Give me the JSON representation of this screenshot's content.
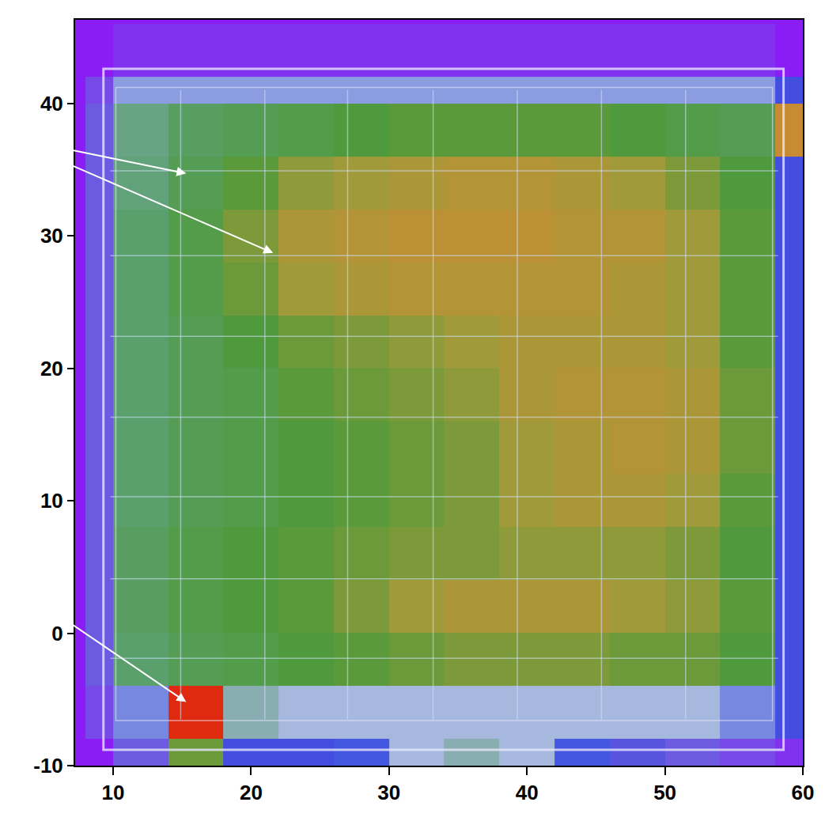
{
  "chart_data": {
    "type": "heatmap",
    "x": [
      8,
      10,
      14,
      18,
      22,
      26,
      30,
      34,
      38,
      42,
      46,
      50,
      54,
      58,
      60
    ],
    "y": [
      -10,
      -8,
      -4,
      0,
      4,
      8,
      12,
      16,
      20,
      24,
      28,
      32,
      36,
      40,
      42,
      46
    ],
    "cells": [
      [
        0.05,
        0.2,
        0.7,
        0.3,
        0.3,
        0.35,
        0.45,
        0.5,
        0.45,
        0.35,
        0.25,
        0.2,
        0.15,
        0.1
      ],
      [
        0.15,
        0.4,
        1.0,
        0.5,
        0.45,
        0.45,
        0.45,
        0.45,
        0.45,
        0.45,
        0.45,
        0.45,
        0.4,
        0.3
      ],
      [
        0.2,
        0.58,
        0.62,
        0.64,
        0.66,
        0.68,
        0.7,
        0.72,
        0.72,
        0.72,
        0.7,
        0.7,
        0.66,
        0.3
      ],
      [
        0.2,
        0.6,
        0.64,
        0.66,
        0.68,
        0.72,
        0.76,
        0.78,
        0.78,
        0.78,
        0.76,
        0.74,
        0.68,
        0.3
      ],
      [
        0.2,
        0.6,
        0.64,
        0.66,
        0.68,
        0.7,
        0.72,
        0.72,
        0.74,
        0.74,
        0.74,
        0.72,
        0.66,
        0.3
      ],
      [
        0.2,
        0.58,
        0.62,
        0.64,
        0.66,
        0.68,
        0.7,
        0.72,
        0.76,
        0.78,
        0.78,
        0.76,
        0.68,
        0.3
      ],
      [
        0.2,
        0.58,
        0.62,
        0.64,
        0.66,
        0.68,
        0.7,
        0.72,
        0.76,
        0.78,
        0.8,
        0.78,
        0.7,
        0.3
      ],
      [
        0.2,
        0.58,
        0.62,
        0.64,
        0.68,
        0.7,
        0.72,
        0.74,
        0.78,
        0.8,
        0.8,
        0.78,
        0.7,
        0.3
      ],
      [
        0.2,
        0.58,
        0.62,
        0.66,
        0.7,
        0.72,
        0.74,
        0.76,
        0.78,
        0.78,
        0.78,
        0.76,
        0.68,
        0.3
      ],
      [
        0.2,
        0.58,
        0.64,
        0.7,
        0.76,
        0.78,
        0.8,
        0.8,
        0.8,
        0.8,
        0.78,
        0.76,
        0.68,
        0.3
      ],
      [
        0.2,
        0.58,
        0.64,
        0.72,
        0.78,
        0.8,
        0.82,
        0.82,
        0.82,
        0.8,
        0.8,
        0.76,
        0.68,
        0.3
      ],
      [
        0.2,
        0.56,
        0.62,
        0.68,
        0.74,
        0.76,
        0.78,
        0.8,
        0.8,
        0.78,
        0.76,
        0.72,
        0.66,
        0.3
      ],
      [
        0.2,
        0.55,
        0.6,
        0.62,
        0.64,
        0.66,
        0.68,
        0.68,
        0.68,
        0.68,
        0.66,
        0.64,
        0.62,
        0.85
      ],
      [
        0.15,
        0.42,
        0.42,
        0.42,
        0.42,
        0.42,
        0.42,
        0.42,
        0.42,
        0.42,
        0.42,
        0.42,
        0.42,
        0.3
      ],
      [
        0.05,
        0.1,
        0.1,
        0.1,
        0.1,
        0.1,
        0.1,
        0.1,
        0.1,
        0.1,
        0.1,
        0.1,
        0.1,
        0.05
      ]
    ],
    "xlim": [
      7.25,
      60
    ],
    "ylim": [
      -10,
      46.3
    ],
    "xticks": [
      10,
      20,
      30,
      40,
      50,
      60
    ],
    "yticks": [
      -10,
      0,
      10,
      20,
      30,
      40
    ]
  }
}
